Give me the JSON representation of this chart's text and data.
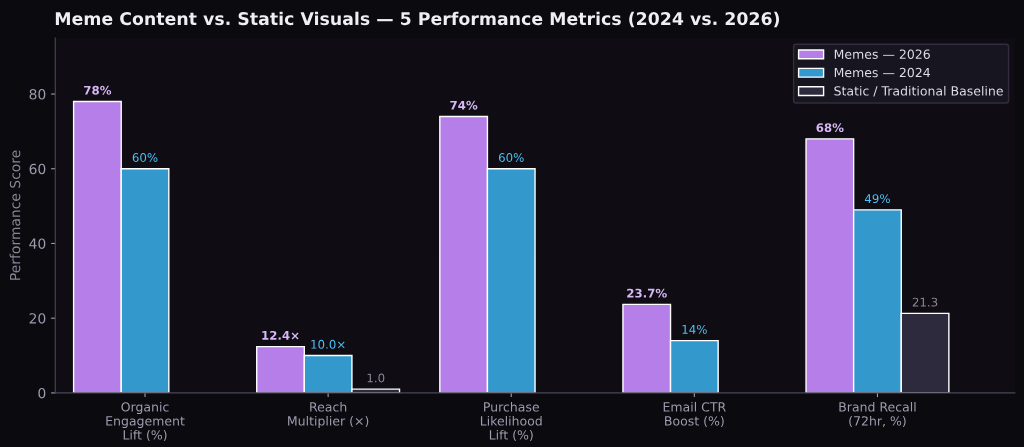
{
  "chart_data": {
    "type": "bar",
    "title": "Meme Content vs. Static Visuals — 5 Performance Metrics (2024 vs. 2026)",
    "ylabel": "Performance Score",
    "categories": [
      "Organic\nEngagement\nLift (%)",
      "Reach\nMultiplier (×)",
      "Purchase\nLikelihood\nLift (%)",
      "Email CTR\nBoost (%)",
      "Brand Recall\n(72hr, %)"
    ],
    "series": [
      {
        "name": "Memes — 2026",
        "color": "#b57ee8",
        "values": [
          78,
          12.4,
          74,
          23.7,
          68
        ],
        "value_labels": [
          "78%",
          "12.4×",
          "74%",
          "23.7%",
          "68%"
        ]
      },
      {
        "name": "Memes — 2024",
        "color": "#3399cc",
        "values": [
          60,
          10.0,
          60,
          14,
          49
        ],
        "value_labels": [
          "60%",
          "10.0×",
          "60%",
          "14%",
          "49%"
        ]
      },
      {
        "name": "Static / Traditional Baseline",
        "color": "#2e2a3d",
        "values": [
          null,
          1.0,
          null,
          null,
          21.3
        ],
        "value_labels": [
          null,
          "1.0",
          null,
          null,
          "21.3"
        ]
      }
    ],
    "ylim": [
      0,
      95
    ],
    "yticks": [
      0,
      20,
      40,
      60,
      80
    ],
    "grid": false,
    "legend": "top right"
  }
}
